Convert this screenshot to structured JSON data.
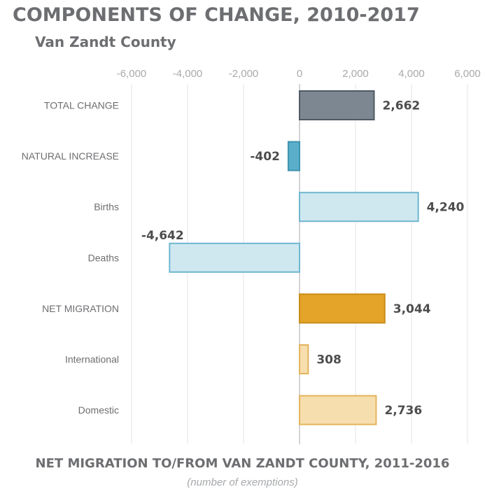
{
  "header": {
    "title": "COMPONENTS OF CHANGE, 2010-2017",
    "subtitle": "Van Zandt County"
  },
  "footer": {
    "title": "NET MIGRATION TO/FROM VAN ZANDT COUNTY, 2011-2016",
    "note": "(number of exemptions)"
  },
  "colors": {
    "grid": "#e3e4e5",
    "axis": "#a7a9ac"
  },
  "chart_data": {
    "type": "bar",
    "orientation": "horizontal",
    "title": "COMPONENTS OF CHANGE, 2010-2017",
    "subtitle": "Van Zandt County",
    "xlabel": "",
    "ylabel": "",
    "xlim": [
      -6000,
      6000
    ],
    "ticks": [
      {
        "value": -6000,
        "label": "-6,000"
      },
      {
        "value": -4000,
        "label": "-4,000"
      },
      {
        "value": -2000,
        "label": "-2,000"
      },
      {
        "value": 0,
        "label": "0"
      },
      {
        "value": 2000,
        "label": "2,000"
      },
      {
        "value": 4000,
        "label": "4,000"
      },
      {
        "value": 6000,
        "label": "6,000"
      }
    ],
    "grid": true,
    "categories": [
      "TOTAL CHANGE",
      "NATURAL INCREASE",
      "Births",
      "Deaths",
      "NET MIGRATION",
      "International",
      "Domestic"
    ],
    "values": [
      2662,
      -402,
      4240,
      -4642,
      3044,
      308,
      2736
    ],
    "labels": [
      "2,662",
      "-402",
      "4,240",
      "-4,642",
      "3,044",
      "308",
      "2,736"
    ],
    "bar_colors": [
      {
        "fill": "#7d8791",
        "stroke": "#4f5a63"
      },
      {
        "fill": "#5aaec9",
        "stroke": "#3d93b0"
      },
      {
        "fill": "#cfe8f0",
        "stroke": "#6fb6cf"
      },
      {
        "fill": "#cfe8f0",
        "stroke": "#6fb6cf"
      },
      {
        "fill": "#e3a429",
        "stroke": "#c98c16"
      },
      {
        "fill": "#f6deae",
        "stroke": "#e3b45c"
      },
      {
        "fill": "#f6deae",
        "stroke": "#e3b45c"
      }
    ]
  }
}
